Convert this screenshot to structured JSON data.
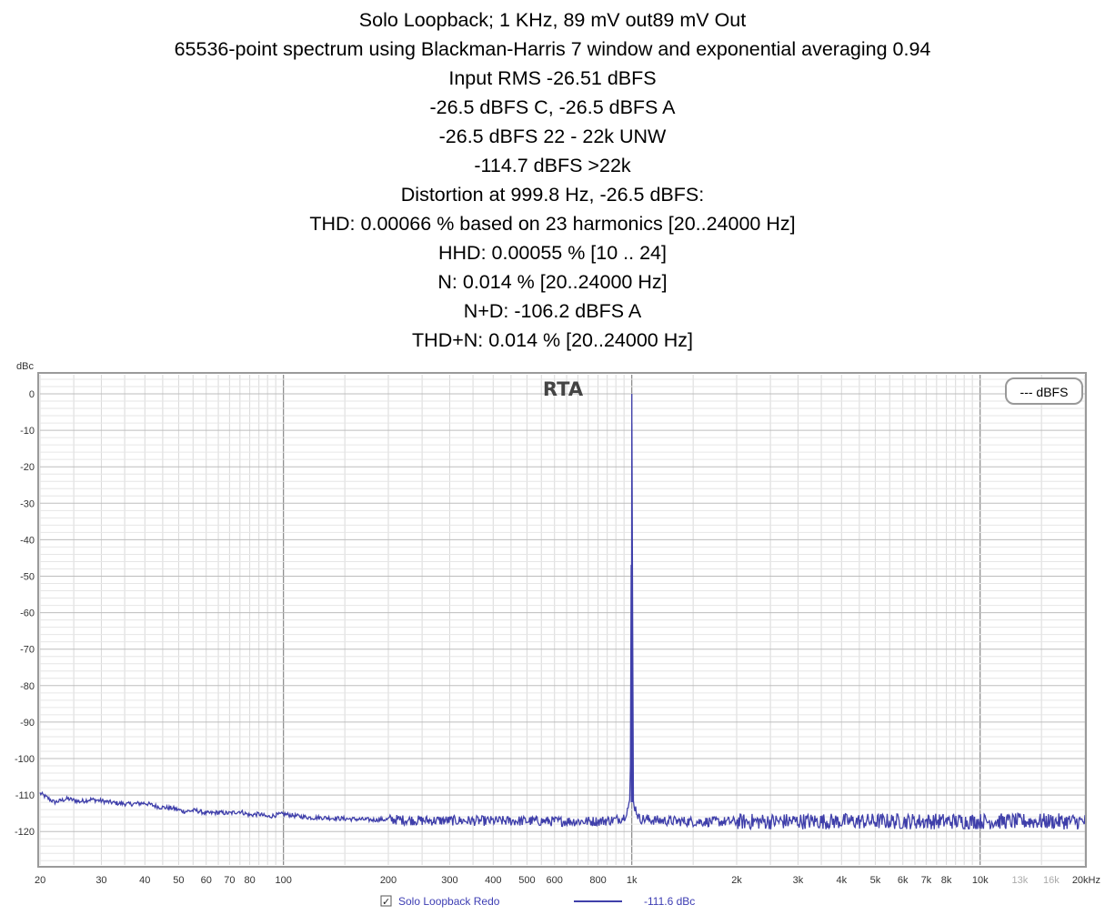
{
  "header": {
    "lines": [
      "Solo Loopback; 1 KHz, 89 mV out89 mV Out",
      "65536-point spectrum using Blackman-Harris 7 window and exponential averaging 0.94",
      "Input RMS -26.51 dBFS",
      "-26.5 dBFS C, -26.5 dBFS A",
      "-26.5 dBFS 22 - 22k UNW",
      "-114.7 dBFS >22k",
      "Distortion at 999.8 Hz, -26.5 dBFS:",
      "THD: 0.00066 % based on 23 harmonics [20..24000 Hz]",
      "HHD: 0.00055 % [10 .. 24]",
      "N: 0.014 % [20..24000 Hz]",
      "N+D: -106.2 dBFS A",
      "THD+N: 0.014 % [20..24000 Hz]"
    ]
  },
  "chart_data": {
    "type": "line",
    "title": "RTA",
    "ylabel": "dBc",
    "xscale": "log",
    "xlim": [
      20,
      20000
    ],
    "ylim": [
      -130,
      5
    ],
    "yticks": [
      0,
      -10,
      -20,
      -30,
      -40,
      -50,
      -60,
      -70,
      -80,
      -90,
      -100,
      -110,
      -120
    ],
    "xticks": [
      {
        "value": 20,
        "label": "20"
      },
      {
        "value": 30,
        "label": "30"
      },
      {
        "value": 40,
        "label": "40"
      },
      {
        "value": 50,
        "label": "50"
      },
      {
        "value": 60,
        "label": "60"
      },
      {
        "value": 70,
        "label": "70"
      },
      {
        "value": 80,
        "label": "80"
      },
      {
        "value": 100,
        "label": "100"
      },
      {
        "value": 200,
        "label": "200"
      },
      {
        "value": 300,
        "label": "300"
      },
      {
        "value": 400,
        "label": "400"
      },
      {
        "value": 500,
        "label": "500"
      },
      {
        "value": 600,
        "label": "600"
      },
      {
        "value": 800,
        "label": "800"
      },
      {
        "value": 1000,
        "label": "1k"
      },
      {
        "value": 2000,
        "label": "2k"
      },
      {
        "value": 3000,
        "label": "3k"
      },
      {
        "value": 4000,
        "label": "4k"
      },
      {
        "value": 5000,
        "label": "5k"
      },
      {
        "value": 6000,
        "label": "6k"
      },
      {
        "value": 7000,
        "label": "7k"
      },
      {
        "value": 8000,
        "label": "8k"
      },
      {
        "value": 10000,
        "label": "10k"
      },
      {
        "value": 13000,
        "label": "13k",
        "faint": true
      },
      {
        "value": 16000,
        "label": "16k",
        "faint": true
      },
      {
        "value": 20000,
        "label": "20kHz"
      }
    ],
    "grid": true,
    "legend": {
      "position": "top-right",
      "label": "--- dBFS"
    },
    "series": [
      {
        "name": "Solo Loopback Redo",
        "color": "#3f3faa",
        "peak": {
          "x": 1000,
          "y": 0
        },
        "x": [
          20,
          22,
          24,
          26,
          28,
          30,
          33,
          36,
          40,
          44,
          48,
          52,
          56,
          60,
          65,
          70,
          75,
          80,
          85,
          90,
          95,
          100,
          110,
          120,
          130,
          150,
          180,
          200,
          250,
          300,
          400,
          500,
          600,
          700,
          800,
          900,
          950,
          990,
          1000,
          1010,
          1050,
          1200,
          1500,
          2000,
          3000,
          4000,
          5000,
          7000,
          10000,
          13000,
          16000,
          20000
        ],
        "y": [
          -109.5,
          -112,
          -111,
          -111.8,
          -111.2,
          -111.6,
          -112.2,
          -112.5,
          -112.2,
          -113.3,
          -113.6,
          -114.5,
          -114.2,
          -115,
          -114.8,
          -115,
          -114.5,
          -115.5,
          -115.2,
          -116,
          -115.5,
          -115.2,
          -115.8,
          -116.2,
          -116.2,
          -116.5,
          -116.8,
          -116.7,
          -117,
          -117,
          -117.1,
          -117.1,
          -117.2,
          -117.2,
          -117.2,
          -116.8,
          -116,
          -112,
          0,
          -112,
          -116.5,
          -117,
          -117.3,
          -117.3,
          -117.2,
          -117.2,
          -117.2,
          -117.2,
          -117.2,
          -117.2,
          -117.2,
          -117.3
        ]
      }
    ]
  },
  "footer": {
    "series_name": "Solo Loopback Redo",
    "series_value": "-111.6 dBc",
    "checkbox_glyph": "✓"
  },
  "colors": {
    "trace": "#3f3faa",
    "grid_minor": "#d9d9d9",
    "grid_major": "#7a7a7a",
    "frame": "#9a9a9a"
  }
}
